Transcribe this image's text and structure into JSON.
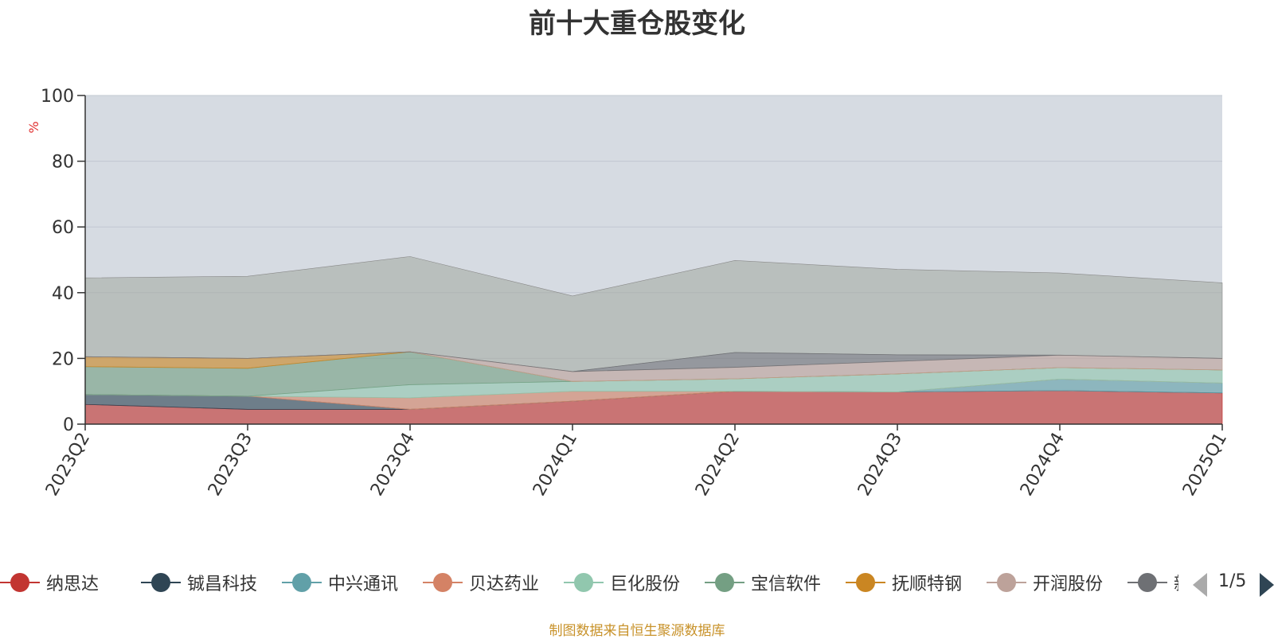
{
  "chart_data": {
    "type": "area",
    "stacked": true,
    "title": "前十大重仓股变化",
    "xlabel": "",
    "ylabel": "%",
    "ylim": [
      0,
      100
    ],
    "yticks": [
      0,
      20,
      40,
      60,
      80,
      100
    ],
    "grid": true,
    "legend_position": "bottom",
    "categories": [
      "2023Q2",
      "2023Q3",
      "2023Q4",
      "2024Q1",
      "2024Q2",
      "2024Q3",
      "2024Q4",
      "2025Q1"
    ],
    "series": [
      {
        "name": "纳思达",
        "color": "#c23531",
        "values": [
          6.0,
          4.5,
          4.5,
          7.0,
          10.0,
          9.8,
          10.2,
          9.5
        ]
      },
      {
        "name": "铖昌科技",
        "color": "#2f4554",
        "values": [
          3.0,
          4.0,
          0,
          0,
          0,
          0,
          0,
          0
        ]
      },
      {
        "name": "中兴通讯",
        "color": "#61a0a8",
        "values": [
          0,
          0,
          0,
          0,
          0,
          0,
          3.5,
          3.0
        ]
      },
      {
        "name": "贝达药业",
        "color": "#d48265",
        "values": [
          0,
          0,
          3.5,
          3.0,
          0,
          0,
          0,
          0
        ]
      },
      {
        "name": "巨化股份",
        "color": "#91c7ae",
        "values": [
          0,
          0,
          4.0,
          3.0,
          3.8,
          5.5,
          3.5,
          4.0
        ]
      },
      {
        "name": "宝信软件",
        "color": "#749f83",
        "values": [
          8.5,
          8.5,
          10.0,
          0,
          0,
          0,
          0,
          0
        ]
      },
      {
        "name": "抚顺特钢",
        "color": "#ca8622",
        "values": [
          3.0,
          3.0,
          0,
          0,
          0,
          0,
          0,
          0
        ]
      },
      {
        "name": "开润股份",
        "color": "#bda29a",
        "values": [
          0,
          0,
          0,
          3.0,
          3.5,
          3.8,
          3.8,
          3.5
        ]
      },
      {
        "name": "新",
        "color": "#6e7074",
        "values": [
          0,
          0,
          0,
          0,
          4.5,
          2.0,
          0,
          0
        ]
      }
    ]
  },
  "legend": {
    "page_indicator": "1/5"
  },
  "source_note": "制图数据来自恒生聚源数据库"
}
